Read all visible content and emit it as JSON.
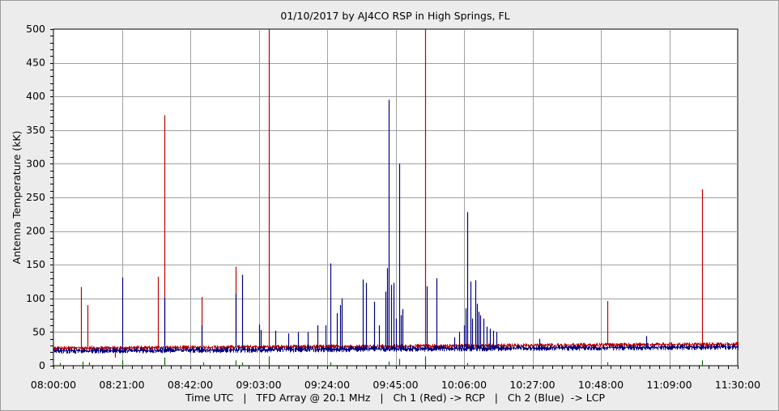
{
  "chart_data": {
    "type": "line",
    "title": "01/10/2017  by  AJ4CO RSP  in  High Springs, FL",
    "xlabel": "Time UTC   |   TFD Array @ 20.1 MHz   |   Ch 1 (Red) -> RCP   |   Ch 2 (Blue)  -> LCP",
    "ylabel": "Antenna Temperature (kK)",
    "xlim": [
      "08:00:00",
      "11:30:00"
    ],
    "ylim": [
      0,
      500
    ],
    "x_ticks": [
      "08:00:00",
      "08:21:00",
      "08:42:00",
      "09:03:00",
      "09:24:00",
      "09:45:00",
      "10:06:00",
      "10:27:00",
      "10:48:00",
      "11:09:00",
      "11:30:00"
    ],
    "y_ticks": [
      "0",
      "50",
      "100",
      "150",
      "200",
      "250",
      "300",
      "350",
      "400",
      "450",
      "500"
    ],
    "grid": true,
    "colors": {
      "ch1": "#c00000",
      "ch2": "#000080",
      "ch3": "#007000",
      "grid": "#a0a0a0",
      "plot_bg": "#ffffff"
    },
    "series": [
      {
        "name": "Ch 1 (Red)",
        "color": "#c00000",
        "baseline_start": 26,
        "baseline_end": 32,
        "spikes": [
          {
            "x": "08:08:30",
            "y": 117
          },
          {
            "x": "08:10:30",
            "y": 90
          },
          {
            "x": "08:19:00",
            "y": 12
          },
          {
            "x": "08:32:00",
            "y": 132
          },
          {
            "x": "08:34:00",
            "y": 372
          },
          {
            "x": "08:45:30",
            "y": 102
          },
          {
            "x": "08:56:00",
            "y": 147
          },
          {
            "x": "09:06:00",
            "y": 500
          },
          {
            "x": "09:54:00",
            "y": 500
          },
          {
            "x": "10:50:00",
            "y": 96
          },
          {
            "x": "11:19:00",
            "y": 262
          }
        ]
      },
      {
        "name": "Ch 2 (Blue)",
        "color": "#000080",
        "baseline_start": 22,
        "baseline_end": 28,
        "spikes": [
          {
            "x": "08:21:00",
            "y": 131
          },
          {
            "x": "08:34:00",
            "y": 101
          },
          {
            "x": "08:45:30",
            "y": 60
          },
          {
            "x": "08:56:00",
            "y": 107
          },
          {
            "x": "08:58:00",
            "y": 135
          },
          {
            "x": "09:03:00",
            "y": 61
          },
          {
            "x": "09:03:30",
            "y": 53
          },
          {
            "x": "09:08:00",
            "y": 52
          },
          {
            "x": "09:12:00",
            "y": 48
          },
          {
            "x": "09:15:00",
            "y": 50
          },
          {
            "x": "09:18:00",
            "y": 50
          },
          {
            "x": "09:21:00",
            "y": 60
          },
          {
            "x": "09:23:30",
            "y": 60
          },
          {
            "x": "09:25:00",
            "y": 152
          },
          {
            "x": "09:27:00",
            "y": 78
          },
          {
            "x": "09:28:00",
            "y": 90
          },
          {
            "x": "09:28:30",
            "y": 100
          },
          {
            "x": "09:35:00",
            "y": 128
          },
          {
            "x": "09:36:00",
            "y": 123
          },
          {
            "x": "09:38:30",
            "y": 95
          },
          {
            "x": "09:40:00",
            "y": 60
          },
          {
            "x": "09:42:00",
            "y": 110
          },
          {
            "x": "09:42:30",
            "y": 145
          },
          {
            "x": "09:43:00",
            "y": 395
          },
          {
            "x": "09:43:40",
            "y": 120
          },
          {
            "x": "09:44:30",
            "y": 123
          },
          {
            "x": "09:45:00",
            "y": 70
          },
          {
            "x": "09:46:00",
            "y": 300
          },
          {
            "x": "09:46:30",
            "y": 75
          },
          {
            "x": "09:47:00",
            "y": 84
          },
          {
            "x": "09:54:30",
            "y": 118
          },
          {
            "x": "09:57:30",
            "y": 130
          },
          {
            "x": "10:03:00",
            "y": 42
          },
          {
            "x": "10:04:30",
            "y": 50
          },
          {
            "x": "10:06:00",
            "y": 60
          },
          {
            "x": "10:06:30",
            "y": 85
          },
          {
            "x": "10:07:00",
            "y": 228
          },
          {
            "x": "10:08:00",
            "y": 125
          },
          {
            "x": "10:08:30",
            "y": 70
          },
          {
            "x": "10:09:30",
            "y": 127
          },
          {
            "x": "10:10:00",
            "y": 92
          },
          {
            "x": "10:10:30",
            "y": 80
          },
          {
            "x": "10:11:00",
            "y": 75
          },
          {
            "x": "10:12:00",
            "y": 70
          },
          {
            "x": "10:13:00",
            "y": 58
          },
          {
            "x": "10:14:00",
            "y": 55
          },
          {
            "x": "10:15:00",
            "y": 52
          },
          {
            "x": "10:16:00",
            "y": 50
          },
          {
            "x": "10:29:00",
            "y": 40
          },
          {
            "x": "11:02:00",
            "y": 44
          }
        ]
      },
      {
        "name": "Ch 3 (Green)",
        "color": "#007000",
        "baseline_start": 1,
        "baseline_end": 1,
        "spikes": [
          {
            "x": "08:02:00",
            "y": 4
          },
          {
            "x": "08:09:00",
            "y": 6
          },
          {
            "x": "08:11:00",
            "y": 5
          },
          {
            "x": "08:21:00",
            "y": 8
          },
          {
            "x": "08:34:00",
            "y": 12
          },
          {
            "x": "08:46:00",
            "y": 5
          },
          {
            "x": "08:56:00",
            "y": 8
          },
          {
            "x": "08:58:00",
            "y": 5
          },
          {
            "x": "09:06:00",
            "y": 14
          },
          {
            "x": "09:25:00",
            "y": 5
          },
          {
            "x": "09:43:00",
            "y": 6
          },
          {
            "x": "09:46:00",
            "y": 10
          },
          {
            "x": "09:54:00",
            "y": 14
          },
          {
            "x": "10:07:00",
            "y": 4
          },
          {
            "x": "10:50:00",
            "y": 5
          },
          {
            "x": "11:19:00",
            "y": 8
          }
        ]
      }
    ]
  }
}
